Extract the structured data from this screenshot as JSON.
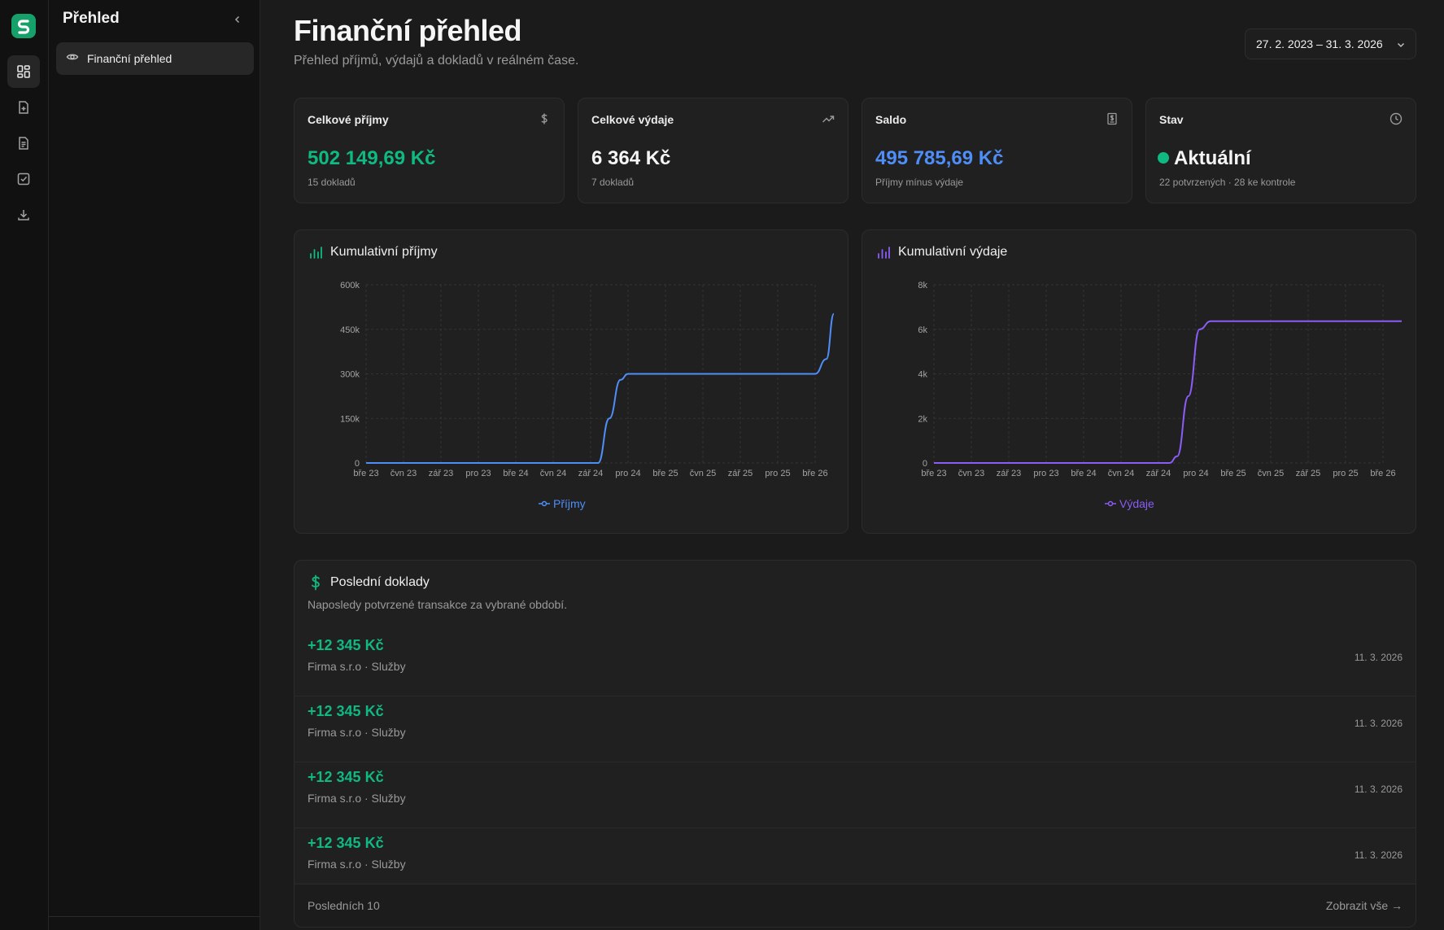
{
  "sidebar": {
    "title": "Přehled",
    "items": [
      {
        "label": "Finanční přehled",
        "icon": "eye-icon"
      }
    ]
  },
  "rail": {
    "icons": [
      "dashboard-icon",
      "file-plus-icon",
      "document-icon",
      "checkbox-icon",
      "download-icon"
    ]
  },
  "header": {
    "title": "Finanční přehled",
    "subtitle": "Přehled příjmů, výdajů a dokladů v reálném čase.",
    "date_range": "27. 2. 2023 – 31. 3. 2026"
  },
  "kpis": [
    {
      "label": "Celkové příjmy",
      "value": "502 149,69 Kč",
      "sub": "15 dokladů",
      "icon": "dollar-icon",
      "color": "#10b981"
    },
    {
      "label": "Celkové výdaje",
      "value": "6 364 Kč",
      "sub": "7 dokladů",
      "icon": "trending-up-icon",
      "color": "#f5f5f5"
    },
    {
      "label": "Saldo",
      "value": "495 785,69 Kč",
      "sub": "Příjmy mínus výdaje",
      "icon": "receipt-icon",
      "color": "#4f8ef7"
    },
    {
      "label": "Stav",
      "value": "Aktuální",
      "sub": "22 potvrzených · 28 ke kontrole",
      "icon": "clock-icon",
      "color": "#f5f5f5"
    }
  ],
  "chart_data": [
    {
      "type": "line",
      "title": "Kumulativní příjmy",
      "categories": [
        "bře 23",
        "čvn 23",
        "zář 23",
        "pro 23",
        "bře 24",
        "čvn 24",
        "zář 24",
        "pro 24",
        "bře 25",
        "čvn 25",
        "zář 25",
        "pro 25",
        "bře 26"
      ],
      "yticks": [
        "0",
        "150k",
        "300k",
        "450k",
        "600k"
      ],
      "ylim": [
        0,
        600000
      ],
      "grid": true,
      "color": "#4f8ef7",
      "series": [
        {
          "name": "Příjmy",
          "x": [
            0,
            6,
            6.2,
            6.5,
            6.8,
            7,
            7.2,
            12,
            12.3,
            12.5
          ],
          "values": [
            0,
            0,
            0,
            150000,
            280000,
            300000,
            300000,
            300000,
            350000,
            502150
          ]
        }
      ]
    },
    {
      "type": "line",
      "title": "Kumulativní výdaje",
      "categories": [
        "bře 23",
        "čvn 23",
        "zář 23",
        "pro 23",
        "bře 24",
        "čvn 24",
        "zář 24",
        "pro 24",
        "bře 25",
        "čvn 25",
        "zář 25",
        "pro 25",
        "bře 26"
      ],
      "yticks": [
        "0",
        "2k",
        "4k",
        "6k",
        "8k"
      ],
      "ylim": [
        0,
        8000
      ],
      "grid": true,
      "color": "#8b5cf6",
      "series": [
        {
          "name": "Výdaje",
          "x": [
            0,
            6.3,
            6.5,
            6.8,
            7.1,
            7.4,
            12.5
          ],
          "values": [
            0,
            0,
            300,
            3000,
            6000,
            6364,
            6364
          ]
        }
      ]
    }
  ],
  "transactions": {
    "title": "Poslední doklady",
    "description": "Naposledy potvrzené transakce za vybrané období.",
    "rows": [
      {
        "amount": "+12 345 Kč",
        "meta": "Firma s.r.o · Služby",
        "date": "11. 3. 2026"
      },
      {
        "amount": "+12 345 Kč",
        "meta": "Firma s.r.o · Služby",
        "date": "11. 3. 2026"
      },
      {
        "amount": "+12 345 Kč",
        "meta": "Firma s.r.o · Služby",
        "date": "11. 3. 2026"
      },
      {
        "amount": "+12 345 Kč",
        "meta": "Firma s.r.o · Služby",
        "date": "11. 3. 2026"
      }
    ],
    "footer_left": "Posledních 10",
    "footer_right": "Zobrazit vše →"
  }
}
